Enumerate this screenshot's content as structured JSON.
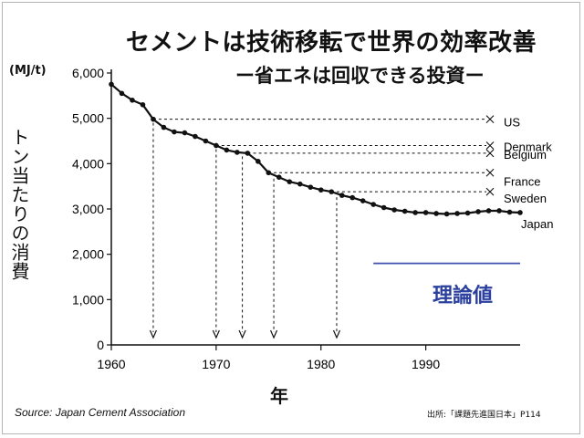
{
  "header": {
    "title": "セメントは技術移転で世界の効率改善",
    "subtitle": "ー省エネは回収できる投資ー"
  },
  "footer": {
    "source": "Source: Japan Cement Association",
    "citation": "出所:「課題先進国日本」P114"
  },
  "chart_data": {
    "type": "line",
    "title": "セメントは技術移転で世界の効率改善",
    "subtitle": "ー省エネは回収できる投資ー",
    "unit": "(MJ/t)",
    "ylabel": "トン当たりの消費",
    "xlabel": "年",
    "xlim": [
      1960,
      1999
    ],
    "ylim": [
      0,
      6000
    ],
    "x_ticks": [
      1960,
      1970,
      1980,
      1990
    ],
    "y_ticks": [
      0,
      1000,
      2000,
      3000,
      4000,
      5000,
      6000
    ],
    "y_tick_labels": [
      "0",
      "1,000",
      "2,000",
      "3,000",
      "4,000",
      "5,000",
      "6,000"
    ],
    "series": [
      {
        "name": "Japan",
        "x": [
          1960,
          1961,
          1962,
          1963,
          1964,
          1965,
          1966,
          1967,
          1968,
          1969,
          1970,
          1971,
          1972,
          1973,
          1974,
          1975,
          1976,
          1977,
          1978,
          1979,
          1980,
          1981,
          1982,
          1983,
          1984,
          1985,
          1986,
          1987,
          1988,
          1989,
          1990,
          1991,
          1992,
          1993,
          1994,
          1995,
          1996,
          1997,
          1998,
          1999
        ],
        "y": [
          5750,
          5550,
          5400,
          5300,
          4980,
          4800,
          4700,
          4680,
          4600,
          4500,
          4400,
          4300,
          4250,
          4230,
          4050,
          3800,
          3700,
          3600,
          3550,
          3480,
          3420,
          3380,
          3300,
          3250,
          3180,
          3100,
          3030,
          2980,
          2950,
          2920,
          2920,
          2900,
          2890,
          2900,
          2910,
          2940,
          2960,
          2960,
          2930,
          2920
        ]
      }
    ],
    "reference_levels": [
      {
        "name": "US",
        "value": 4980,
        "year": 1964
      },
      {
        "name": "Denmark",
        "value": 4400,
        "year": 1970
      },
      {
        "name": "Belgium",
        "value": 4230,
        "year": 1972.5
      },
      {
        "name": "France",
        "value": 3800,
        "year": 1975.5
      },
      {
        "name": "Sweden",
        "value": 3380,
        "year": 1981.5
      }
    ],
    "end_label": "Japan",
    "theoretical": {
      "label": "理論値",
      "value": 1800,
      "x_range": [
        1985,
        1999
      ],
      "color": "#3d4fb0"
    },
    "colors": {
      "line": "#111111",
      "theoretical": "#3d4fb0",
      "label": "#2a3f9e"
    }
  }
}
